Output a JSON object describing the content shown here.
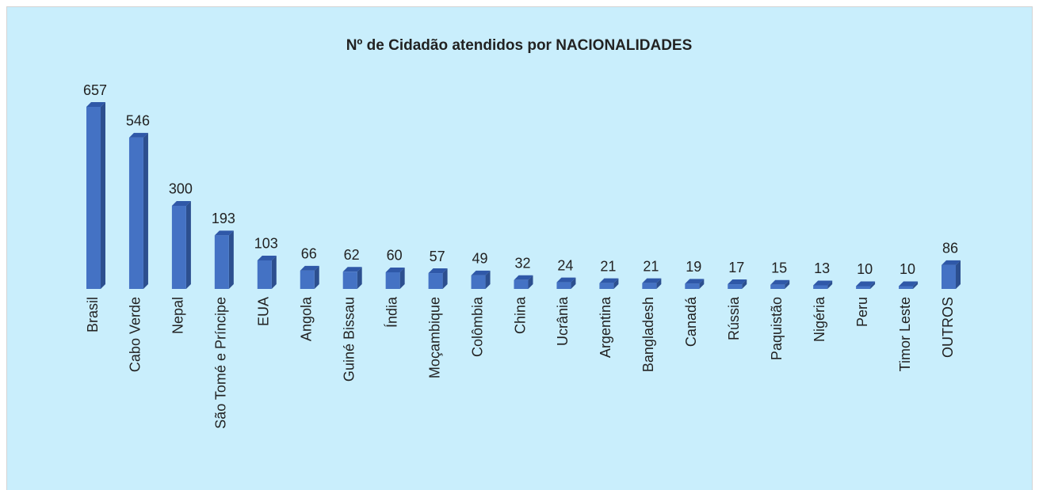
{
  "chart_data": {
    "type": "bar3d",
    "title": "Nº de Cidadão atendidos por NACIONALIDADES",
    "categories": [
      "Brasil",
      "Cabo Verde",
      "Nepal",
      "São Tomé e Príncipe",
      "EUA",
      "Angola",
      "Guiné Bissau",
      "Índia",
      "Moçambique",
      "Colômbia",
      "China",
      "Ucrânia",
      "Argentina",
      "Bangladesh",
      "Canadá",
      "Rússia",
      "Paquistão",
      "Nigéria",
      "Peru",
      "Timor Leste",
      "OUTROS"
    ],
    "values": [
      657,
      546,
      300,
      193,
      103,
      66,
      62,
      60,
      57,
      49,
      32,
      24,
      21,
      21,
      19,
      17,
      15,
      13,
      10,
      10,
      86
    ],
    "color": "#4472c4"
  }
}
